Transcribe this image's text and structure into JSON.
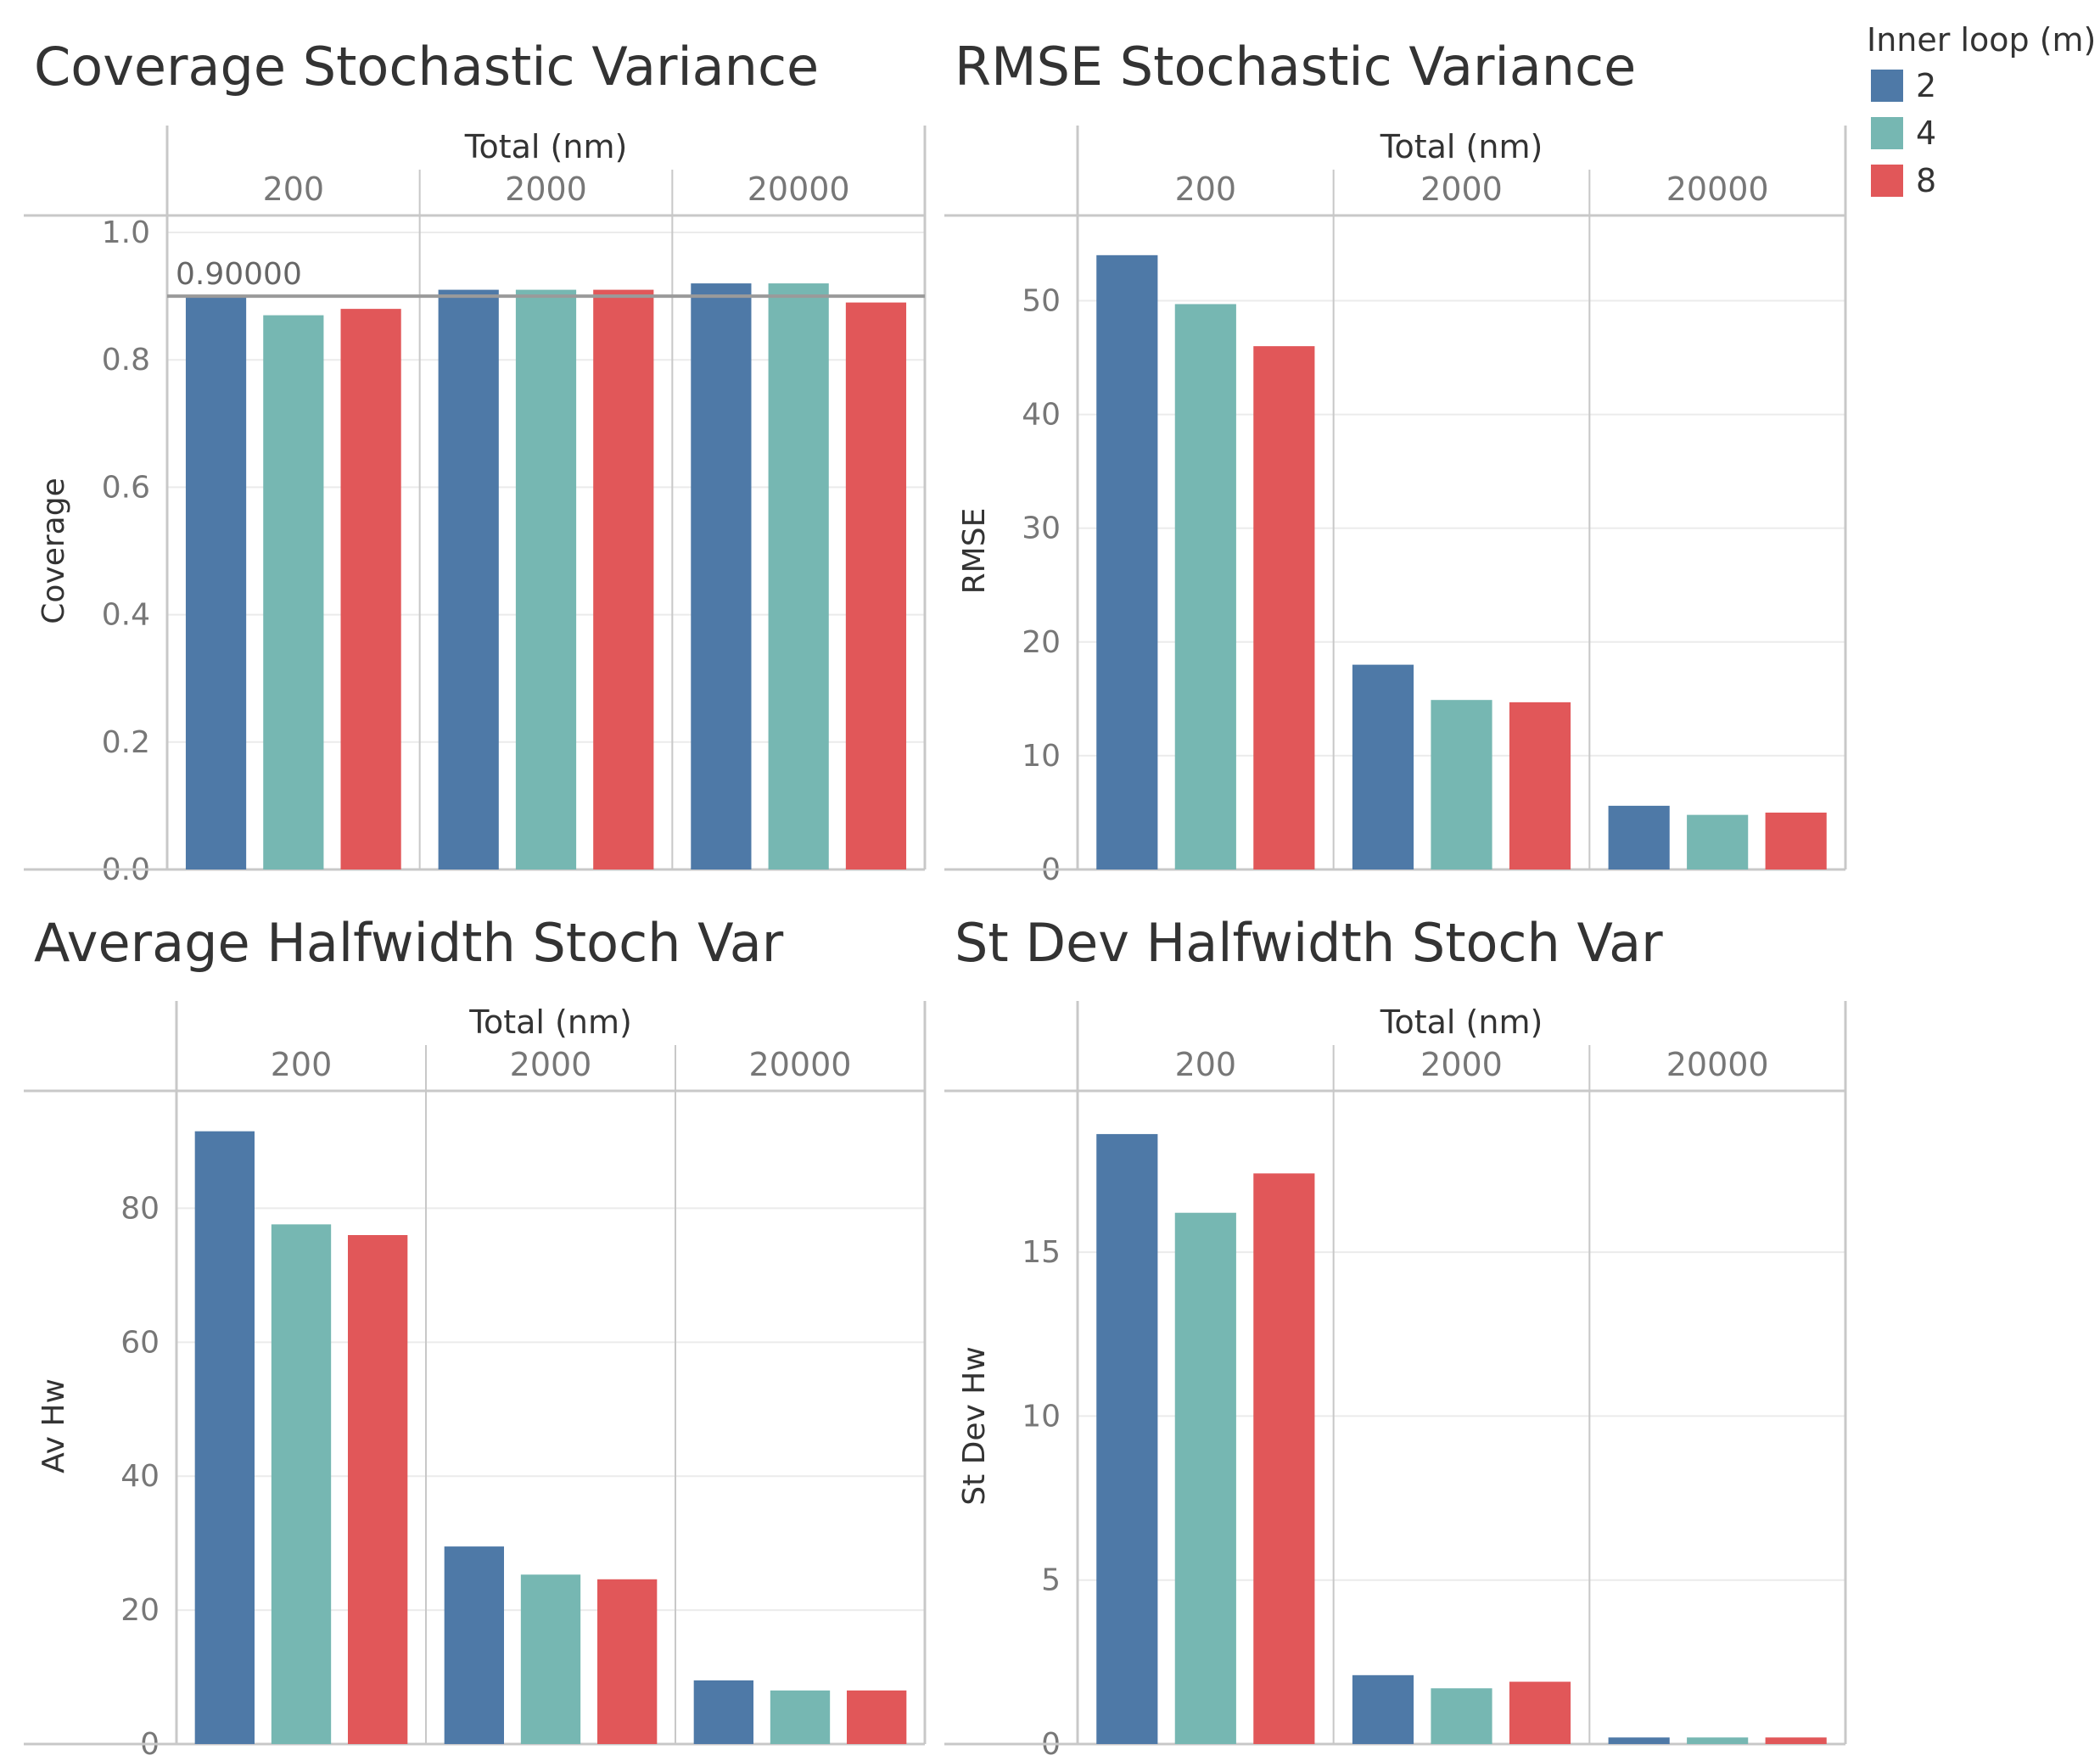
{
  "legend": {
    "title": "Inner loop (m)",
    "items": [
      {
        "label": "2",
        "color": "#4e79a7"
      },
      {
        "label": "4",
        "color": "#76b7b2"
      },
      {
        "label": "8",
        "color": "#e15759"
      }
    ]
  },
  "chart_data": [
    {
      "type": "bar",
      "title": "Coverage Stochastic Variance",
      "column_header": "Total (nm)",
      "groups": [
        "200",
        "2000",
        "20000"
      ],
      "series_labels": [
        "2",
        "4",
        "8"
      ],
      "values": [
        [
          0.9,
          0.87,
          0.88
        ],
        [
          0.91,
          0.91,
          0.91
        ],
        [
          0.92,
          0.92,
          0.89
        ]
      ],
      "ylabel": "Coverage",
      "ylim": [
        0,
        1.0
      ],
      "yticks": [
        0.0,
        0.2,
        0.4,
        0.6,
        0.8,
        1.0
      ],
      "ytick_labels": [
        "0.0",
        "0.2",
        "0.4",
        "0.6",
        "0.8",
        "1.0"
      ],
      "reference_line": {
        "value": 0.9,
        "label": "0.90000"
      }
    },
    {
      "type": "bar",
      "title": "RMSE Stochastic Variance",
      "column_header": "Total (nm)",
      "groups": [
        "200",
        "2000",
        "20000"
      ],
      "series_labels": [
        "2",
        "4",
        "8"
      ],
      "values": [
        [
          54,
          49.7,
          46
        ],
        [
          18,
          14.9,
          14.7
        ],
        [
          5.6,
          4.8,
          5.0
        ]
      ],
      "ylabel": "RMSE",
      "ylim": [
        0,
        56
      ],
      "yticks": [
        0,
        10,
        20,
        30,
        40,
        50
      ],
      "ytick_labels": [
        "0",
        "10",
        "20",
        "30",
        "40",
        "50"
      ]
    },
    {
      "type": "bar",
      "title": "Average Halfwidth Stoch Var",
      "column_header": "Total (nm)",
      "groups": [
        "200",
        "2000",
        "20000"
      ],
      "series_labels": [
        "2",
        "4",
        "8"
      ],
      "values": [
        [
          91.5,
          77.6,
          76
        ],
        [
          29.5,
          25.3,
          24.6
        ],
        [
          9.5,
          8.0,
          8.0
        ]
      ],
      "ylabel": "Av Hw",
      "ylim": [
        0,
        95
      ],
      "yticks": [
        0,
        20,
        40,
        60,
        80
      ],
      "ytick_labels": [
        "0",
        "20",
        "40",
        "60",
        "80"
      ]
    },
    {
      "type": "bar",
      "title": "St Dev Halfwidth Stoch Var",
      "column_header": "Total (nm)",
      "groups": [
        "200",
        "2000",
        "20000"
      ],
      "series_labels": [
        "2",
        "4",
        "8"
      ],
      "values": [
        [
          18.6,
          16.2,
          17.4
        ],
        [
          2.1,
          1.7,
          1.9
        ],
        [
          0.2,
          0.2,
          0.2
        ]
      ],
      "ylabel": "St Dev Hw",
      "ylim": [
        0,
        19.4
      ],
      "yticks": [
        0,
        5,
        10,
        15
      ],
      "ytick_labels": [
        "0",
        "5",
        "10",
        "15"
      ]
    }
  ]
}
